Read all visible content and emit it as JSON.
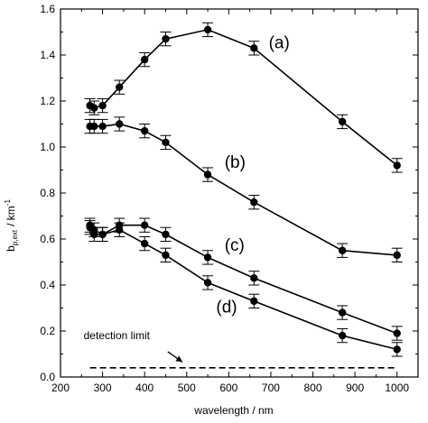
{
  "chart_data": {
    "type": "line",
    "title": "",
    "xlabel": "wavelength / nm",
    "ylabel_main": "b",
    "ylabel_sub": "p,ext",
    "ylabel_unit": "/ km",
    "ylabel_exp": "-1",
    "xlim": [
      200,
      1050
    ],
    "ylim": [
      0,
      1.6
    ],
    "xticks": [
      200,
      300,
      400,
      500,
      600,
      700,
      800,
      900,
      1000
    ],
    "yticks": [
      0.0,
      0.2,
      0.4,
      0.6,
      0.8,
      1.0,
      1.2,
      1.4,
      1.6
    ],
    "xtick_labels": [
      "200",
      "300",
      "400",
      "500",
      "600",
      "700",
      "800",
      "900",
      "1000"
    ],
    "ytick_labels": [
      "0.0",
      "0.2",
      "0.4",
      "0.6",
      "0.8",
      "1.0",
      "1.2",
      "1.4",
      "1.6"
    ],
    "grid": false,
    "series": [
      {
        "name": "(a)",
        "x": [
          270,
          280,
          300,
          340,
          400,
          450,
          550,
          660,
          870,
          1000
        ],
        "y": [
          1.18,
          1.17,
          1.18,
          1.26,
          1.38,
          1.47,
          1.51,
          1.43,
          1.11,
          0.92
        ],
        "err": [
          0.03,
          0.03,
          0.03,
          0.03,
          0.03,
          0.03,
          0.03,
          0.03,
          0.03,
          0.03
        ]
      },
      {
        "name": "(b)",
        "x": [
          270,
          280,
          300,
          340,
          400,
          450,
          550,
          660,
          870,
          1000
        ],
        "y": [
          1.09,
          1.09,
          1.09,
          1.1,
          1.07,
          1.02,
          0.88,
          0.76,
          0.55,
          0.53
        ],
        "err": [
          0.03,
          0.03,
          0.03,
          0.03,
          0.03,
          0.03,
          0.03,
          0.03,
          0.03,
          0.03
        ]
      },
      {
        "name": "(c)",
        "x": [
          270,
          280,
          300,
          340,
          400,
          450,
          550,
          660,
          870,
          1000
        ],
        "y": [
          0.65,
          0.64,
          0.62,
          0.66,
          0.66,
          0.62,
          0.52,
          0.43,
          0.28,
          0.19
        ],
        "err": [
          0.03,
          0.03,
          0.03,
          0.03,
          0.03,
          0.03,
          0.03,
          0.03,
          0.03,
          0.03
        ]
      },
      {
        "name": "(d)",
        "x": [
          270,
          280,
          300,
          340,
          400,
          450,
          550,
          660,
          870,
          1000
        ],
        "y": [
          0.66,
          0.62,
          0.62,
          0.64,
          0.58,
          0.53,
          0.41,
          0.33,
          0.18,
          0.12
        ],
        "err": [
          0.03,
          0.03,
          0.03,
          0.03,
          0.03,
          0.03,
          0.03,
          0.03,
          0.03,
          0.03
        ]
      }
    ],
    "series_label_positions": [
      {
        "name": "(a)",
        "x": 695,
        "y": 1.43
      },
      {
        "name": "(b)",
        "x": 590,
        "y": 0.91
      },
      {
        "name": "(c)",
        "x": 590,
        "y": 0.55
      },
      {
        "name": "(d)",
        "x": 570,
        "y": 0.28
      }
    ],
    "detection_limit": {
      "label": "detection limit",
      "y": 0.04,
      "x_start": 270,
      "x_end": 1000,
      "label_x": 255,
      "label_y": 0.165,
      "arrow_from": [
        455,
        0.11
      ],
      "arrow_to": [
        490,
        0.065
      ]
    }
  }
}
